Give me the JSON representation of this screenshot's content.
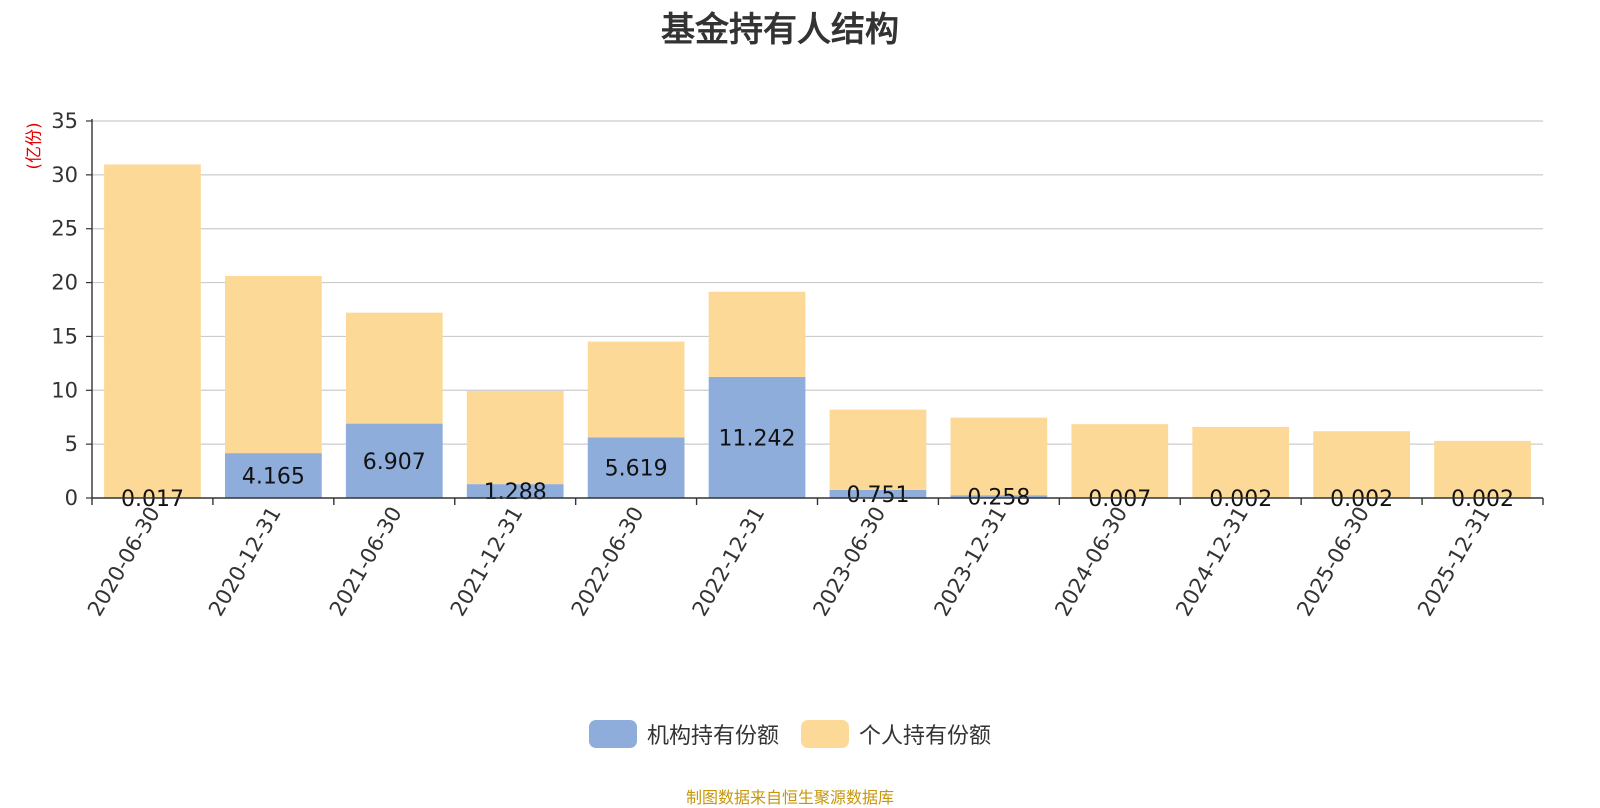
{
  "chart_data": {
    "type": "bar",
    "stacked": true,
    "title": "基金持有人结构",
    "unit_label": "(亿份)",
    "categories": [
      "2020-06-30",
      "2020-12-31",
      "2021-06-30",
      "2021-12-31",
      "2022-06-30",
      "2022-12-31",
      "2023-06-30",
      "2023-12-31",
      "2024-06-30",
      "2024-12-31",
      "2025-06-30",
      "2025-12-31"
    ],
    "series": [
      {
        "name": "机构持有份额",
        "color": "#8eaddb",
        "values": [
          0.017,
          4.165,
          6.907,
          1.288,
          5.619,
          11.242,
          0.751,
          0.258,
          0.007,
          0.002,
          0.002,
          0.002
        ],
        "labels": [
          "0.017",
          "4.165",
          "6.907",
          "1.288",
          "5.619",
          "11.242",
          "0.751",
          "0.258",
          "0.007",
          "0.002",
          "0.002",
          "0.002"
        ]
      },
      {
        "name": "个人持有份额",
        "color": "#fdd998",
        "values": [
          30.95,
          16.45,
          10.3,
          8.65,
          8.9,
          7.9,
          7.45,
          7.2,
          6.85,
          6.6,
          6.2,
          5.3
        ]
      }
    ],
    "ylim": [
      0,
      35
    ],
    "yticks": [
      0,
      5,
      10,
      15,
      20,
      25,
      30,
      35
    ],
    "grid": true,
    "legend_position": "bottom-center",
    "source_note": "制图数据来自恒生聚源数据库"
  }
}
